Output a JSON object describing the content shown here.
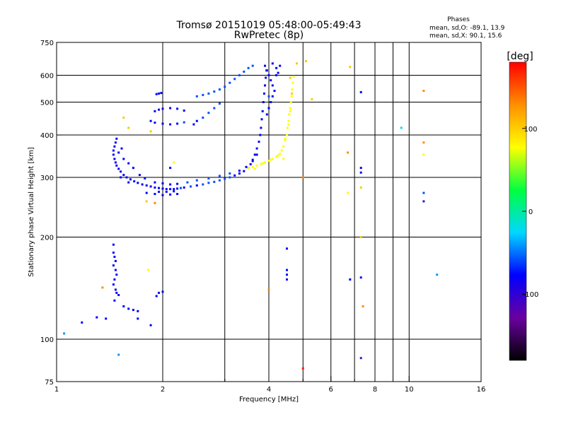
{
  "header": {
    "title_line1": "Tromsø 20151019 05:48:00-05:49:43",
    "title_line2": "RwPretec (8p)"
  },
  "stats": {
    "title": "Phases",
    "line_o": "mean, sd,O: -89.1, 13.9",
    "line_x": "mean, sd,X:  90.1, 15.6"
  },
  "chart_data": {
    "type": "scatter",
    "xlabel": "Frequency [MHz]",
    "ylabel": "Stationary phase Virtual Height [km]",
    "x_scale": "log",
    "y_scale": "log",
    "xlim": [
      1,
      16
    ],
    "ylim": [
      75,
      750
    ],
    "x_ticks": [
      1,
      2,
      4,
      6,
      8,
      10,
      16
    ],
    "y_ticks": [
      75,
      100,
      200,
      300,
      400,
      500,
      600,
      750
    ],
    "x_ticks_minor": [
      3,
      5,
      7,
      9
    ],
    "grid": true,
    "colorbar": {
      "label": "[deg]",
      "range": [
        -180,
        180
      ],
      "ticks": [
        -100,
        0,
        100
      ],
      "colors": [
        "#000000",
        "#6a00a0",
        "#0000ff",
        "#00d8ff",
        "#00ff40",
        "#ffff00",
        "#ff9000",
        "#ff0000"
      ]
    },
    "color_ranges": [
      {
        "lo": -180,
        "hi": -155,
        "color": "#150020"
      },
      {
        "lo": -155,
        "hi": -135,
        "color": "#4b0080"
      },
      {
        "lo": -135,
        "hi": -115,
        "color": "#1f1fc8"
      },
      {
        "lo": -115,
        "hi": -90,
        "color": "#0000ff"
      },
      {
        "lo": -90,
        "hi": -65,
        "color": "#0050ff"
      },
      {
        "lo": -65,
        "hi": -40,
        "color": "#0096ff"
      },
      {
        "lo": -40,
        "hi": -15,
        "color": "#00d8ff"
      },
      {
        "lo": -15,
        "hi": 10,
        "color": "#00ffa0"
      },
      {
        "lo": 10,
        "hi": 40,
        "color": "#00ff30"
      },
      {
        "lo": 40,
        "hi": 70,
        "color": "#80ff00"
      },
      {
        "lo": 70,
        "hi": 110,
        "color": "#ffff00"
      },
      {
        "lo": 110,
        "hi": 135,
        "color": "#ffc800"
      },
      {
        "lo": 135,
        "hi": 158,
        "color": "#ff8c00"
      },
      {
        "lo": 158,
        "hi": 180,
        "color": "#ff2000"
      }
    ],
    "series": [
      {
        "points": [
          [
            1.48,
            390,
            -100
          ],
          [
            1.47,
            380,
            -95
          ],
          [
            1.46,
            370,
            -105
          ],
          [
            1.45,
            360,
            -100
          ],
          [
            1.45,
            350,
            -90
          ],
          [
            1.46,
            340,
            -100
          ],
          [
            1.47,
            332,
            -95
          ],
          [
            1.48,
            325,
            -110
          ],
          [
            1.5,
            318,
            -100
          ],
          [
            1.52,
            312,
            -95
          ],
          [
            1.55,
            305,
            -100
          ],
          [
            1.58,
            300,
            -90
          ],
          [
            1.62,
            296,
            -100
          ],
          [
            1.66,
            292,
            -95
          ],
          [
            1.7,
            289,
            -100
          ],
          [
            1.75,
            286,
            -105
          ],
          [
            1.8,
            284,
            -95
          ],
          [
            1.85,
            282,
            -100
          ],
          [
            1.9,
            280,
            -90
          ],
          [
            1.95,
            279,
            -100
          ],
          [
            2.0,
            278,
            -95
          ],
          [
            2.05,
            277,
            -100
          ],
          [
            2.1,
            277,
            -90
          ],
          [
            2.15,
            277,
            -95
          ],
          [
            2.2,
            278,
            -100
          ],
          [
            2.25,
            279,
            -85
          ],
          [
            2.3,
            280,
            -90
          ],
          [
            2.4,
            282,
            -85
          ],
          [
            2.5,
            284,
            -90
          ],
          [
            2.6,
            286,
            -80
          ],
          [
            2.7,
            289,
            -85
          ],
          [
            2.8,
            291,
            -80
          ],
          [
            2.9,
            294,
            -85
          ],
          [
            3.0,
            297,
            -80
          ],
          [
            3.1,
            300,
            -85
          ],
          [
            3.2,
            304,
            -90
          ],
          [
            3.3,
            308,
            -95
          ],
          [
            3.4,
            313,
            -100
          ],
          [
            3.5,
            320,
            -95
          ],
          [
            3.55,
            328,
            -100
          ],
          [
            3.6,
            338,
            -95
          ],
          [
            3.65,
            350,
            -100
          ],
          [
            3.7,
            365,
            -95
          ],
          [
            3.75,
            382,
            -100
          ],
          [
            3.78,
            400,
            -95
          ],
          [
            3.8,
            420,
            -100
          ],
          [
            3.82,
            445,
            -95
          ],
          [
            3.84,
            470,
            -100
          ],
          [
            3.86,
            500,
            -95
          ],
          [
            3.88,
            530,
            -100
          ],
          [
            3.9,
            560,
            -95
          ],
          [
            3.92,
            590,
            -100
          ],
          [
            3.94,
            620,
            -95
          ],
          [
            1.55,
            340,
            -100
          ],
          [
            1.6,
            330,
            -95
          ],
          [
            1.65,
            320,
            -100
          ],
          [
            1.72,
            305,
            -95
          ],
          [
            1.78,
            298,
            -100
          ],
          [
            1.9,
            290,
            -95
          ],
          [
            2.0,
            288,
            -100
          ],
          [
            2.1,
            286,
            -95
          ],
          [
            2.2,
            287,
            -90
          ],
          [
            2.35,
            290,
            -85
          ],
          [
            2.5,
            294,
            -80
          ],
          [
            2.7,
            298,
            -85
          ],
          [
            2.9,
            303,
            -80
          ],
          [
            3.1,
            308,
            -85
          ],
          [
            3.3,
            314,
            -90
          ],
          [
            3.45,
            322,
            -95
          ],
          [
            3.6,
            335,
            -100
          ],
          [
            3.7,
            350,
            -95
          ],
          [
            1.8,
            270,
            -100
          ],
          [
            1.9,
            268,
            -95
          ],
          [
            2.0,
            266,
            -100
          ],
          [
            2.1,
            267,
            -95
          ],
          [
            2.2,
            268,
            -100
          ],
          [
            1.95,
            272,
            -90
          ],
          [
            2.05,
            272,
            -105
          ],
          [
            2.15,
            273,
            -100
          ],
          [
            1.6,
            290,
            -110
          ],
          [
            1.52,
            300,
            -100
          ],
          [
            1.5,
            355,
            -90
          ],
          [
            1.53,
            365,
            -95
          ]
        ]
      },
      {
        "points": [
          [
            1.95,
            530,
            -100
          ],
          [
            1.98,
            532,
            -95
          ],
          [
            1.92,
            528,
            -100
          ],
          [
            2.5,
            520,
            -85
          ],
          [
            2.6,
            525,
            -80
          ],
          [
            2.7,
            530,
            -85
          ],
          [
            2.8,
            537,
            -80
          ],
          [
            2.9,
            545,
            -85
          ],
          [
            3.0,
            555,
            -80
          ],
          [
            3.1,
            570,
            -85
          ],
          [
            3.2,
            585,
            -80
          ],
          [
            3.3,
            600,
            -85
          ],
          [
            3.4,
            615,
            -80
          ],
          [
            3.5,
            630,
            -85
          ],
          [
            3.6,
            640,
            -80
          ],
          [
            1.9,
            470,
            -90
          ],
          [
            1.95,
            475,
            -95
          ],
          [
            2.0,
            478,
            -90
          ],
          [
            2.1,
            480,
            -95
          ],
          [
            2.2,
            478,
            -90
          ],
          [
            2.3,
            472,
            -95
          ],
          [
            1.85,
            440,
            -90
          ],
          [
            1.9,
            435,
            -95
          ],
          [
            2.0,
            432,
            -90
          ],
          [
            2.1,
            430,
            -95
          ],
          [
            2.2,
            432,
            -90
          ],
          [
            2.3,
            436,
            -85
          ],
          [
            2.6,
            450,
            -80
          ],
          [
            2.7,
            465,
            -85
          ],
          [
            2.8,
            480,
            -80
          ],
          [
            2.9,
            495,
            -85
          ],
          [
            2.5,
            440,
            -90
          ],
          [
            2.45,
            430,
            -95
          ]
        ]
      },
      {
        "points": [
          [
            3.9,
            640,
            -95
          ],
          [
            3.95,
            620,
            -100
          ],
          [
            4.0,
            600,
            -95
          ],
          [
            4.05,
            580,
            -100
          ],
          [
            4.1,
            560,
            -95
          ],
          [
            4.15,
            540,
            -100
          ],
          [
            4.1,
            520,
            -95
          ],
          [
            4.05,
            500,
            -100
          ],
          [
            4.0,
            480,
            -95
          ],
          [
            4.2,
            630,
            -100
          ],
          [
            4.25,
            610,
            -95
          ],
          [
            4.1,
            650,
            -100
          ],
          [
            4.3,
            640,
            -95
          ],
          [
            4.2,
            600,
            -90
          ],
          [
            4.0,
            520,
            -85
          ],
          [
            3.95,
            460,
            -90
          ]
        ]
      },
      {
        "points": [
          [
            3.5,
            320,
            100
          ],
          [
            3.6,
            322,
            95
          ],
          [
            3.7,
            325,
            100
          ],
          [
            3.8,
            328,
            95
          ],
          [
            3.9,
            332,
            100
          ],
          [
            4.0,
            336,
            95
          ],
          [
            4.1,
            340,
            100
          ],
          [
            4.2,
            345,
            95
          ],
          [
            4.3,
            352,
            100
          ],
          [
            4.35,
            360,
            95
          ],
          [
            4.4,
            370,
            100
          ],
          [
            4.45,
            385,
            95
          ],
          [
            4.5,
            400,
            100
          ],
          [
            4.52,
            420,
            95
          ],
          [
            4.55,
            440,
            100
          ],
          [
            4.57,
            460,
            95
          ],
          [
            4.6,
            480,
            100
          ],
          [
            4.62,
            500,
            95
          ],
          [
            4.64,
            520,
            100
          ],
          [
            4.66,
            545,
            95
          ],
          [
            4.68,
            570,
            100
          ],
          [
            4.7,
            595,
            110
          ],
          [
            3.65,
            318,
            100
          ],
          [
            3.85,
            330,
            95
          ],
          [
            4.05,
            338,
            100
          ],
          [
            4.25,
            348,
            95
          ],
          [
            4.45,
            390,
            100
          ],
          [
            4.55,
            430,
            95
          ],
          [
            4.6,
            470,
            110
          ],
          [
            4.65,
            530,
            115
          ]
        ]
      },
      {
        "points": [
          [
            4.8,
            650,
            120
          ],
          [
            5.3,
            510,
            125
          ],
          [
            5.1,
            660,
            130
          ],
          [
            5.0,
            300,
            140
          ],
          [
            4.6,
            590,
            120
          ],
          [
            4.4,
            340,
            110
          ],
          [
            6.8,
            635,
            130
          ],
          [
            7.3,
            535,
            -110
          ],
          [
            7.3,
            310,
            -100
          ],
          [
            7.3,
            320,
            -110
          ],
          [
            6.7,
            355,
            140
          ],
          [
            6.7,
            270,
            110
          ],
          [
            7.3,
            280,
            135
          ],
          [
            7.3,
            200,
            130
          ],
          [
            7.4,
            125,
            150
          ],
          [
            6.8,
            150,
            -100
          ],
          [
            7.3,
            152,
            -110
          ],
          [
            7.3,
            88,
            -120
          ],
          [
            5.0,
            82,
            165
          ],
          [
            4.0,
            140,
            150
          ],
          [
            4.5,
            185,
            -95
          ],
          [
            4.5,
            160,
            -110
          ],
          [
            4.5,
            155,
            -100
          ],
          [
            4.5,
            150,
            -110
          ],
          [
            9.5,
            420,
            -30
          ],
          [
            11.0,
            540,
            150
          ],
          [
            11.0,
            380,
            150
          ],
          [
            11.0,
            350,
            110
          ],
          [
            11.0,
            270,
            -80
          ],
          [
            11.0,
            255,
            -120
          ],
          [
            12.0,
            155,
            -60
          ],
          [
            1.45,
            190,
            -100
          ],
          [
            1.45,
            180,
            -95
          ],
          [
            1.46,
            175,
            -100
          ],
          [
            1.47,
            170,
            -90
          ],
          [
            1.45,
            165,
            -100
          ],
          [
            1.47,
            160,
            -95
          ],
          [
            1.48,
            155,
            -100
          ],
          [
            1.46,
            150,
            -95
          ],
          [
            1.45,
            145,
            -100
          ],
          [
            1.47,
            140,
            -95
          ],
          [
            1.48,
            137,
            -100
          ],
          [
            1.5,
            135,
            -90
          ],
          [
            1.46,
            130,
            -100
          ],
          [
            1.55,
            125,
            -95
          ],
          [
            1.6,
            123,
            -100
          ],
          [
            1.65,
            122,
            -95
          ],
          [
            1.7,
            121,
            -100
          ],
          [
            1.95,
            137,
            -95
          ],
          [
            2.0,
            138,
            -90
          ],
          [
            1.92,
            134,
            -100
          ],
          [
            1.38,
            115,
            -95
          ],
          [
            1.3,
            116,
            -100
          ],
          [
            1.18,
            112,
            -90
          ],
          [
            1.05,
            104,
            -40
          ],
          [
            1.5,
            90,
            -50
          ],
          [
            1.7,
            115,
            -100
          ],
          [
            1.85,
            110,
            -95
          ],
          [
            1.82,
            160,
            110
          ],
          [
            1.35,
            142,
            140
          ],
          [
            1.55,
            450,
            125
          ],
          [
            1.6,
            420,
            130
          ],
          [
            1.85,
            410,
            120
          ],
          [
            1.9,
            252,
            140
          ],
          [
            1.8,
            255,
            115
          ],
          [
            2.1,
            320,
            -90
          ],
          [
            2.15,
            332,
            100
          ]
        ]
      }
    ]
  }
}
